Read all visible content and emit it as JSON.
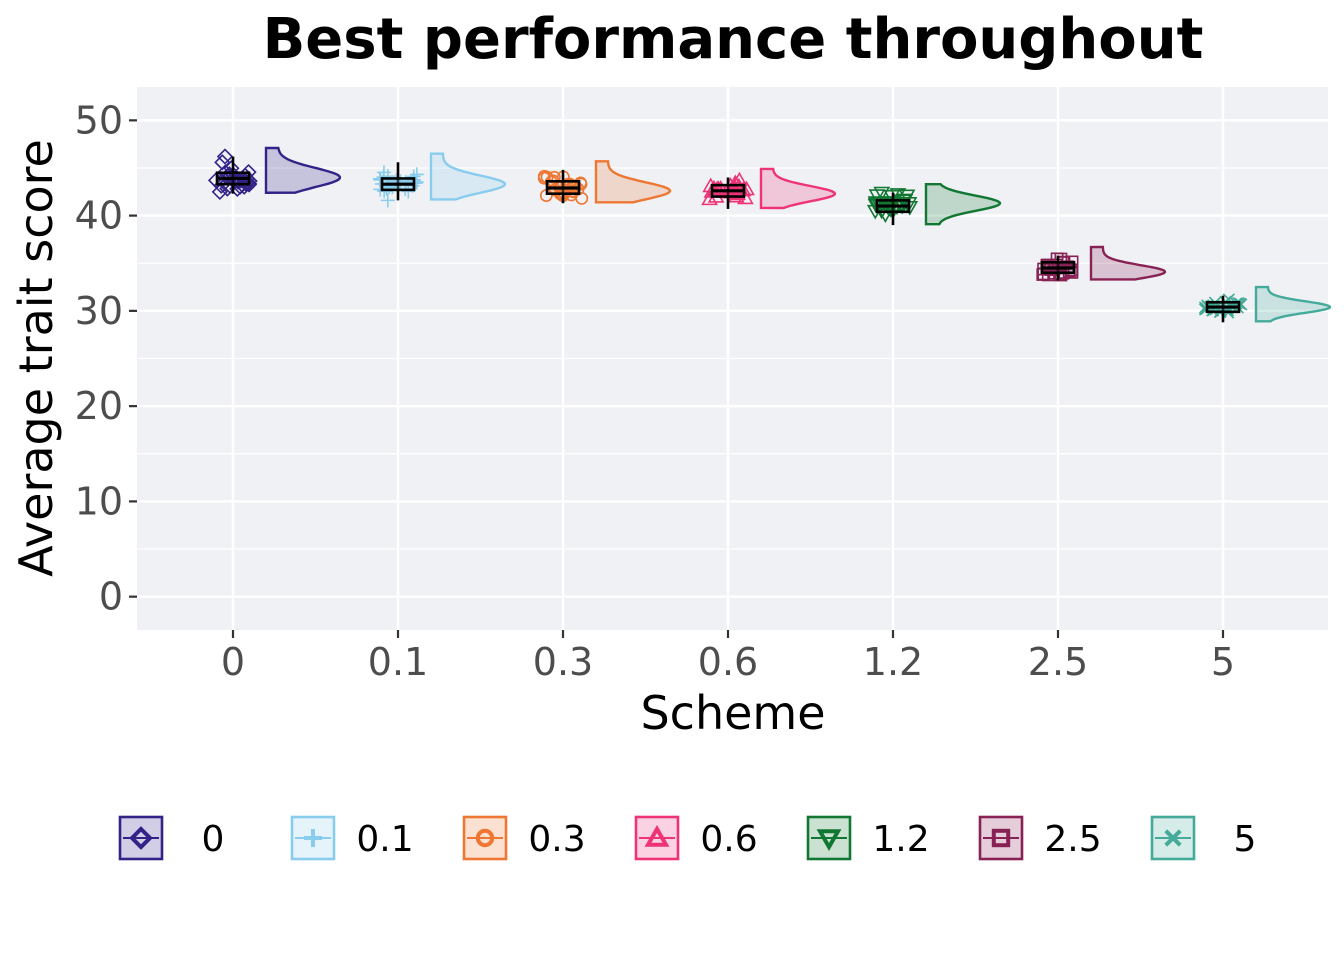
{
  "chart_data": {
    "type": "raincloud",
    "title": "Best performance throughout",
    "xlabel": "Scheme",
    "ylabel": "Average trait score",
    "categories": [
      "0",
      "0.1",
      "0.3",
      "0.6",
      "1.2",
      "2.5",
      "5"
    ],
    "ylim": [
      -3.5,
      53.5
    ],
    "yticks": [
      0,
      10,
      20,
      30,
      40,
      50
    ],
    "grid": true,
    "legend_position": "bottom",
    "series": [
      {
        "name": "0",
        "color": "#332288",
        "marker": "diamond",
        "min": 42.3,
        "q1": 43.3,
        "median": 43.9,
        "q3": 44.5,
        "max": 46.2,
        "spread": 1.0,
        "density_peak": 44.0
      },
      {
        "name": "0.1",
        "color": "#88CCEE",
        "marker": "plus",
        "min": 41.6,
        "q1": 42.7,
        "median": 43.3,
        "q3": 43.9,
        "max": 45.6,
        "spread": 0.9,
        "density_peak": 43.3
      },
      {
        "name": "0.3",
        "color": "#EE7733",
        "marker": "circle",
        "min": 41.3,
        "q1": 42.3,
        "median": 42.9,
        "q3": 43.6,
        "max": 44.8,
        "spread": 0.9,
        "density_peak": 42.6
      },
      {
        "name": "0.6",
        "color": "#EE3377",
        "marker": "triangle-up",
        "min": 40.7,
        "q1": 42.0,
        "median": 42.6,
        "q3": 43.2,
        "max": 44.0,
        "spread": 0.8,
        "density_peak": 42.3
      },
      {
        "name": "1.2",
        "color": "#117733",
        "marker": "triangle-down",
        "min": 39.0,
        "q1": 40.4,
        "median": 41.0,
        "q3": 41.6,
        "max": 42.4,
        "spread": 0.8,
        "density_peak": 41.3
      },
      {
        "name": "2.5",
        "color": "#882255",
        "marker": "square",
        "min": 33.2,
        "q1": 34.0,
        "median": 34.5,
        "q3": 35.1,
        "max": 35.8,
        "spread": 0.7,
        "density_peak": 34.1
      },
      {
        "name": "5",
        "color": "#44AA99",
        "marker": "x",
        "min": 28.8,
        "q1": 29.9,
        "median": 30.4,
        "q3": 30.9,
        "max": 31.6,
        "spread": 0.6,
        "density_peak": 30.4
      }
    ]
  }
}
